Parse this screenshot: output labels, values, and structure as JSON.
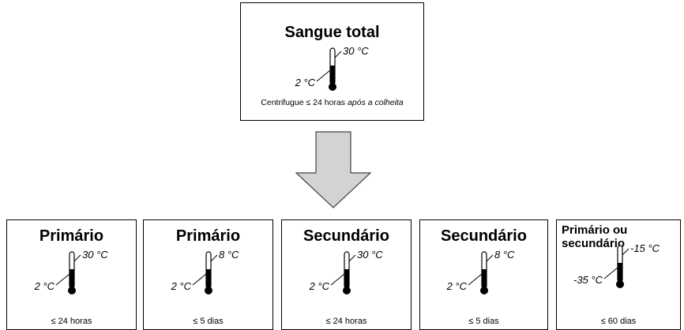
{
  "top": {
    "title": "Sangue total",
    "high": "30 °C",
    "low": "2 °C",
    "note": "Centrifugue ≤ 24 horas",
    "note_italic": "após a colheita"
  },
  "boxes": [
    {
      "title": "Primário",
      "high": "30 °C",
      "low": "2 °C",
      "duration": "≤ 24 horas"
    },
    {
      "title": "Primário",
      "high": "8 °C",
      "low": "2 °C",
      "duration": "≤ 5 dias"
    },
    {
      "title": "Secundário",
      "high": "30 °C",
      "low": "2 °C",
      "duration": "≤ 24 horas"
    },
    {
      "title": "Secundário",
      "high": "8 °C",
      "low": "2 °C",
      "duration": "≤ 5 dias"
    },
    {
      "title": "Primário ou secundário",
      "high": "-15 °C",
      "low": "-35 °C",
      "duration": "≤ 60 dias"
    }
  ]
}
